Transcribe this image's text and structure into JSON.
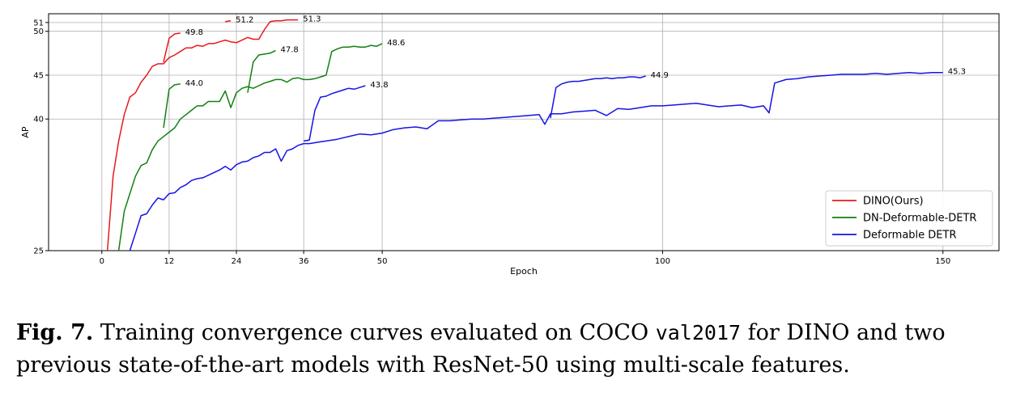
{
  "chart_data": {
    "type": "line",
    "xlabel": "Epoch",
    "ylabel": "AP",
    "xlim": [
      -9.5,
      160
    ],
    "ylim": [
      25,
      52
    ],
    "x_ticks": [
      0,
      12,
      24,
      36,
      50,
      100,
      150
    ],
    "y_ticks": [
      25,
      40,
      45,
      50,
      51
    ],
    "grid": true,
    "legend_position": "lower right",
    "series": [
      {
        "name": "DINO(Ours)",
        "color": "#e8191b",
        "end_label": "51.3",
        "points": [
          [
            1,
            25
          ],
          [
            2,
            33.5
          ],
          [
            3,
            37.5
          ],
          [
            4,
            40.5
          ],
          [
            5,
            42.5
          ],
          [
            6,
            43
          ],
          [
            7,
            44.2
          ],
          [
            8,
            45
          ],
          [
            9,
            46
          ],
          [
            10,
            46.3
          ],
          [
            11,
            46.3
          ],
          [
            12,
            47
          ],
          [
            13,
            47.3
          ],
          [
            14,
            47.7
          ],
          [
            15,
            48.1
          ],
          [
            16,
            48.1
          ],
          [
            17,
            48.4
          ],
          [
            18,
            48.3
          ],
          [
            19,
            48.6
          ],
          [
            20,
            48.6
          ],
          [
            21,
            48.8
          ],
          [
            22,
            49
          ],
          [
            23,
            48.8
          ],
          [
            24,
            48.7
          ],
          [
            25,
            49
          ],
          [
            26,
            49.3
          ],
          [
            27,
            49.1
          ],
          [
            28,
            49.1
          ],
          [
            29,
            50.2
          ],
          [
            30,
            51.1
          ],
          [
            31,
            51.2
          ],
          [
            32,
            51.2
          ],
          [
            33,
            51.3
          ],
          [
            34,
            51.3
          ],
          [
            35,
            51.3
          ]
        ]
      },
      {
        "name": "DINO(Ours)",
        "color": "#e8191b",
        "end_label": "49.8",
        "points": [
          [
            11,
            46.5
          ],
          [
            12,
            49.2
          ],
          [
            13,
            49.7
          ],
          [
            14,
            49.8
          ]
        ]
      },
      {
        "name": "DINO(Ours)",
        "color": "#e8191b",
        "end_label": "51.2",
        "points": [
          [
            22,
            51.1
          ],
          [
            23,
            51.2
          ]
        ]
      },
      {
        "name": "DN-Deformable-DETR",
        "color": "#128012",
        "end_label": "48.6",
        "points": [
          [
            3,
            25
          ],
          [
            4,
            29.5
          ],
          [
            5,
            31.5
          ],
          [
            6,
            33.5
          ],
          [
            7,
            34.7
          ],
          [
            8,
            35
          ],
          [
            9,
            36.5
          ],
          [
            10,
            37.5
          ],
          [
            11,
            38
          ],
          [
            12,
            38.5
          ],
          [
            13,
            39
          ],
          [
            14,
            40
          ],
          [
            15,
            40.5
          ],
          [
            16,
            41
          ],
          [
            17,
            41.5
          ],
          [
            18,
            41.5
          ],
          [
            19,
            42
          ],
          [
            20,
            42
          ],
          [
            21,
            42
          ],
          [
            22,
            43.2
          ],
          [
            23,
            41.3
          ],
          [
            24,
            43
          ],
          [
            25,
            43.5
          ],
          [
            26,
            43.7
          ],
          [
            27,
            43.5
          ],
          [
            28,
            43.8
          ],
          [
            29,
            44.1
          ],
          [
            30,
            44.3
          ],
          [
            31,
            44.5
          ],
          [
            32,
            44.5
          ],
          [
            33,
            44.2
          ],
          [
            34,
            44.6
          ],
          [
            35,
            44.7
          ],
          [
            36,
            44.5
          ],
          [
            37,
            44.5
          ],
          [
            38,
            44.6
          ],
          [
            39,
            44.8
          ],
          [
            40,
            45
          ],
          [
            41,
            47.7
          ],
          [
            42,
            48
          ],
          [
            43,
            48.2
          ],
          [
            44,
            48.2
          ],
          [
            45,
            48.3
          ],
          [
            46,
            48.2
          ],
          [
            47,
            48.2
          ],
          [
            48,
            48.4
          ],
          [
            49,
            48.3
          ],
          [
            50,
            48.6
          ]
        ]
      },
      {
        "name": "DN-Deformable-DETR",
        "color": "#128012",
        "end_label": "44.0",
        "points": [
          [
            11,
            39
          ],
          [
            12,
            43.4
          ],
          [
            13,
            43.9
          ],
          [
            14,
            44.0
          ]
        ]
      },
      {
        "name": "DN-Deformable-DETR",
        "color": "#128012",
        "end_label": "47.8",
        "points": [
          [
            26,
            43
          ],
          [
            27,
            46.5
          ],
          [
            28,
            47.3
          ],
          [
            29,
            47.4
          ],
          [
            30,
            47.5
          ],
          [
            31,
            47.8
          ]
        ]
      },
      {
        "name": "Deformable DETR",
        "color": "#1414e6",
        "end_label": "45.3",
        "points": [
          [
            5,
            25
          ],
          [
            6,
            27
          ],
          [
            7,
            29
          ],
          [
            8,
            29.2
          ],
          [
            9,
            30.2
          ],
          [
            10,
            31
          ],
          [
            11,
            30.8
          ],
          [
            12,
            31.5
          ],
          [
            13,
            31.6
          ],
          [
            14,
            32.2
          ],
          [
            15,
            32.5
          ],
          [
            16,
            33
          ],
          [
            17,
            33.2
          ],
          [
            18,
            33.3
          ],
          [
            19,
            33.6
          ],
          [
            20,
            33.9
          ],
          [
            21,
            34.2
          ],
          [
            22,
            34.6
          ],
          [
            23,
            34.2
          ],
          [
            24,
            34.8
          ],
          [
            25,
            35.1
          ],
          [
            26,
            35.2
          ],
          [
            27,
            35.6
          ],
          [
            28,
            35.8
          ],
          [
            29,
            36.2
          ],
          [
            30,
            36.2
          ],
          [
            31,
            36.6
          ],
          [
            32,
            35.2
          ],
          [
            33,
            36.4
          ],
          [
            34,
            36.6
          ],
          [
            35,
            37
          ],
          [
            36,
            37.2
          ],
          [
            37,
            37.2
          ],
          [
            38,
            37.3
          ],
          [
            39,
            37.4
          ],
          [
            40,
            37.5
          ],
          [
            42,
            37.7
          ],
          [
            44,
            38
          ],
          [
            46,
            38.3
          ],
          [
            48,
            38.2
          ],
          [
            50,
            38.4
          ],
          [
            52,
            38.8
          ],
          [
            54,
            39.0
          ],
          [
            56,
            39.1
          ],
          [
            58,
            38.9
          ],
          [
            60,
            39.8
          ],
          [
            62,
            39.8
          ],
          [
            64,
            39.9
          ],
          [
            66,
            40
          ],
          [
            68,
            40
          ],
          [
            70,
            40.1
          ],
          [
            72,
            40.2
          ],
          [
            74,
            40.3
          ],
          [
            76,
            40.4
          ],
          [
            78,
            40.5
          ],
          [
            79,
            39.4
          ],
          [
            80,
            40.6
          ],
          [
            82,
            40.6
          ],
          [
            84,
            40.8
          ],
          [
            86,
            40.9
          ],
          [
            88,
            41
          ],
          [
            90,
            40.4
          ],
          [
            92,
            41.2
          ],
          [
            94,
            41.1
          ],
          [
            96,
            41.3
          ],
          [
            98,
            41.5
          ],
          [
            100,
            41.5
          ],
          [
            102,
            41.6
          ],
          [
            104,
            41.7
          ],
          [
            106,
            41.8
          ],
          [
            108,
            41.6
          ],
          [
            110,
            41.4
          ],
          [
            112,
            41.5
          ],
          [
            114,
            41.6
          ],
          [
            116,
            41.3
          ],
          [
            118,
            41.5
          ],
          [
            119,
            40.7
          ],
          [
            120,
            44.1
          ],
          [
            122,
            44.5
          ],
          [
            124,
            44.6
          ],
          [
            126,
            44.8
          ],
          [
            128,
            44.9
          ],
          [
            130,
            45
          ],
          [
            132,
            45.1
          ],
          [
            134,
            45.1
          ],
          [
            136,
            45.1
          ],
          [
            138,
            45.2
          ],
          [
            140,
            45.1
          ],
          [
            142,
            45.2
          ],
          [
            144,
            45.3
          ],
          [
            146,
            45.2
          ],
          [
            148,
            45.3
          ],
          [
            150,
            45.3
          ]
        ]
      },
      {
        "name": "Deformable DETR",
        "color": "#1414e6",
        "end_label": "43.8",
        "points": [
          [
            36,
            37.5
          ],
          [
            37,
            37.6
          ],
          [
            38,
            41
          ],
          [
            39,
            42.5
          ],
          [
            40,
            42.6
          ],
          [
            41,
            42.9
          ],
          [
            42,
            43.1
          ],
          [
            43,
            43.3
          ],
          [
            44,
            43.5
          ],
          [
            45,
            43.4
          ],
          [
            46,
            43.6
          ],
          [
            47,
            43.8
          ]
        ]
      },
      {
        "name": "Deformable DETR",
        "color": "#1414e6",
        "end_label": "44.9",
        "points": [
          [
            80,
            40.1
          ],
          [
            81,
            43.6
          ],
          [
            82,
            44
          ],
          [
            83,
            44.2
          ],
          [
            84,
            44.3
          ],
          [
            85,
            44.3
          ],
          [
            86,
            44.4
          ],
          [
            87,
            44.5
          ],
          [
            88,
            44.6
          ],
          [
            89,
            44.6
          ],
          [
            90,
            44.7
          ],
          [
            91,
            44.6
          ],
          [
            92,
            44.7
          ],
          [
            93,
            44.7
          ],
          [
            94,
            44.8
          ],
          [
            95,
            44.8
          ],
          [
            96,
            44.7
          ],
          [
            97,
            44.9
          ]
        ]
      }
    ],
    "legend": [
      {
        "label": "DINO(Ours)",
        "color": "#e8191b"
      },
      {
        "label": "DN-Deformable-DETR",
        "color": "#128012"
      },
      {
        "label": "Deformable DETR",
        "color": "#1414e6"
      }
    ]
  },
  "caption": {
    "label": "Fig. 7.",
    "text_before": " Training convergence curves evaluated on COCO ",
    "code": "val2017",
    "text_after": " for DINO and two previous state-of-the-art models with ResNet-50 using multi-scale features."
  }
}
